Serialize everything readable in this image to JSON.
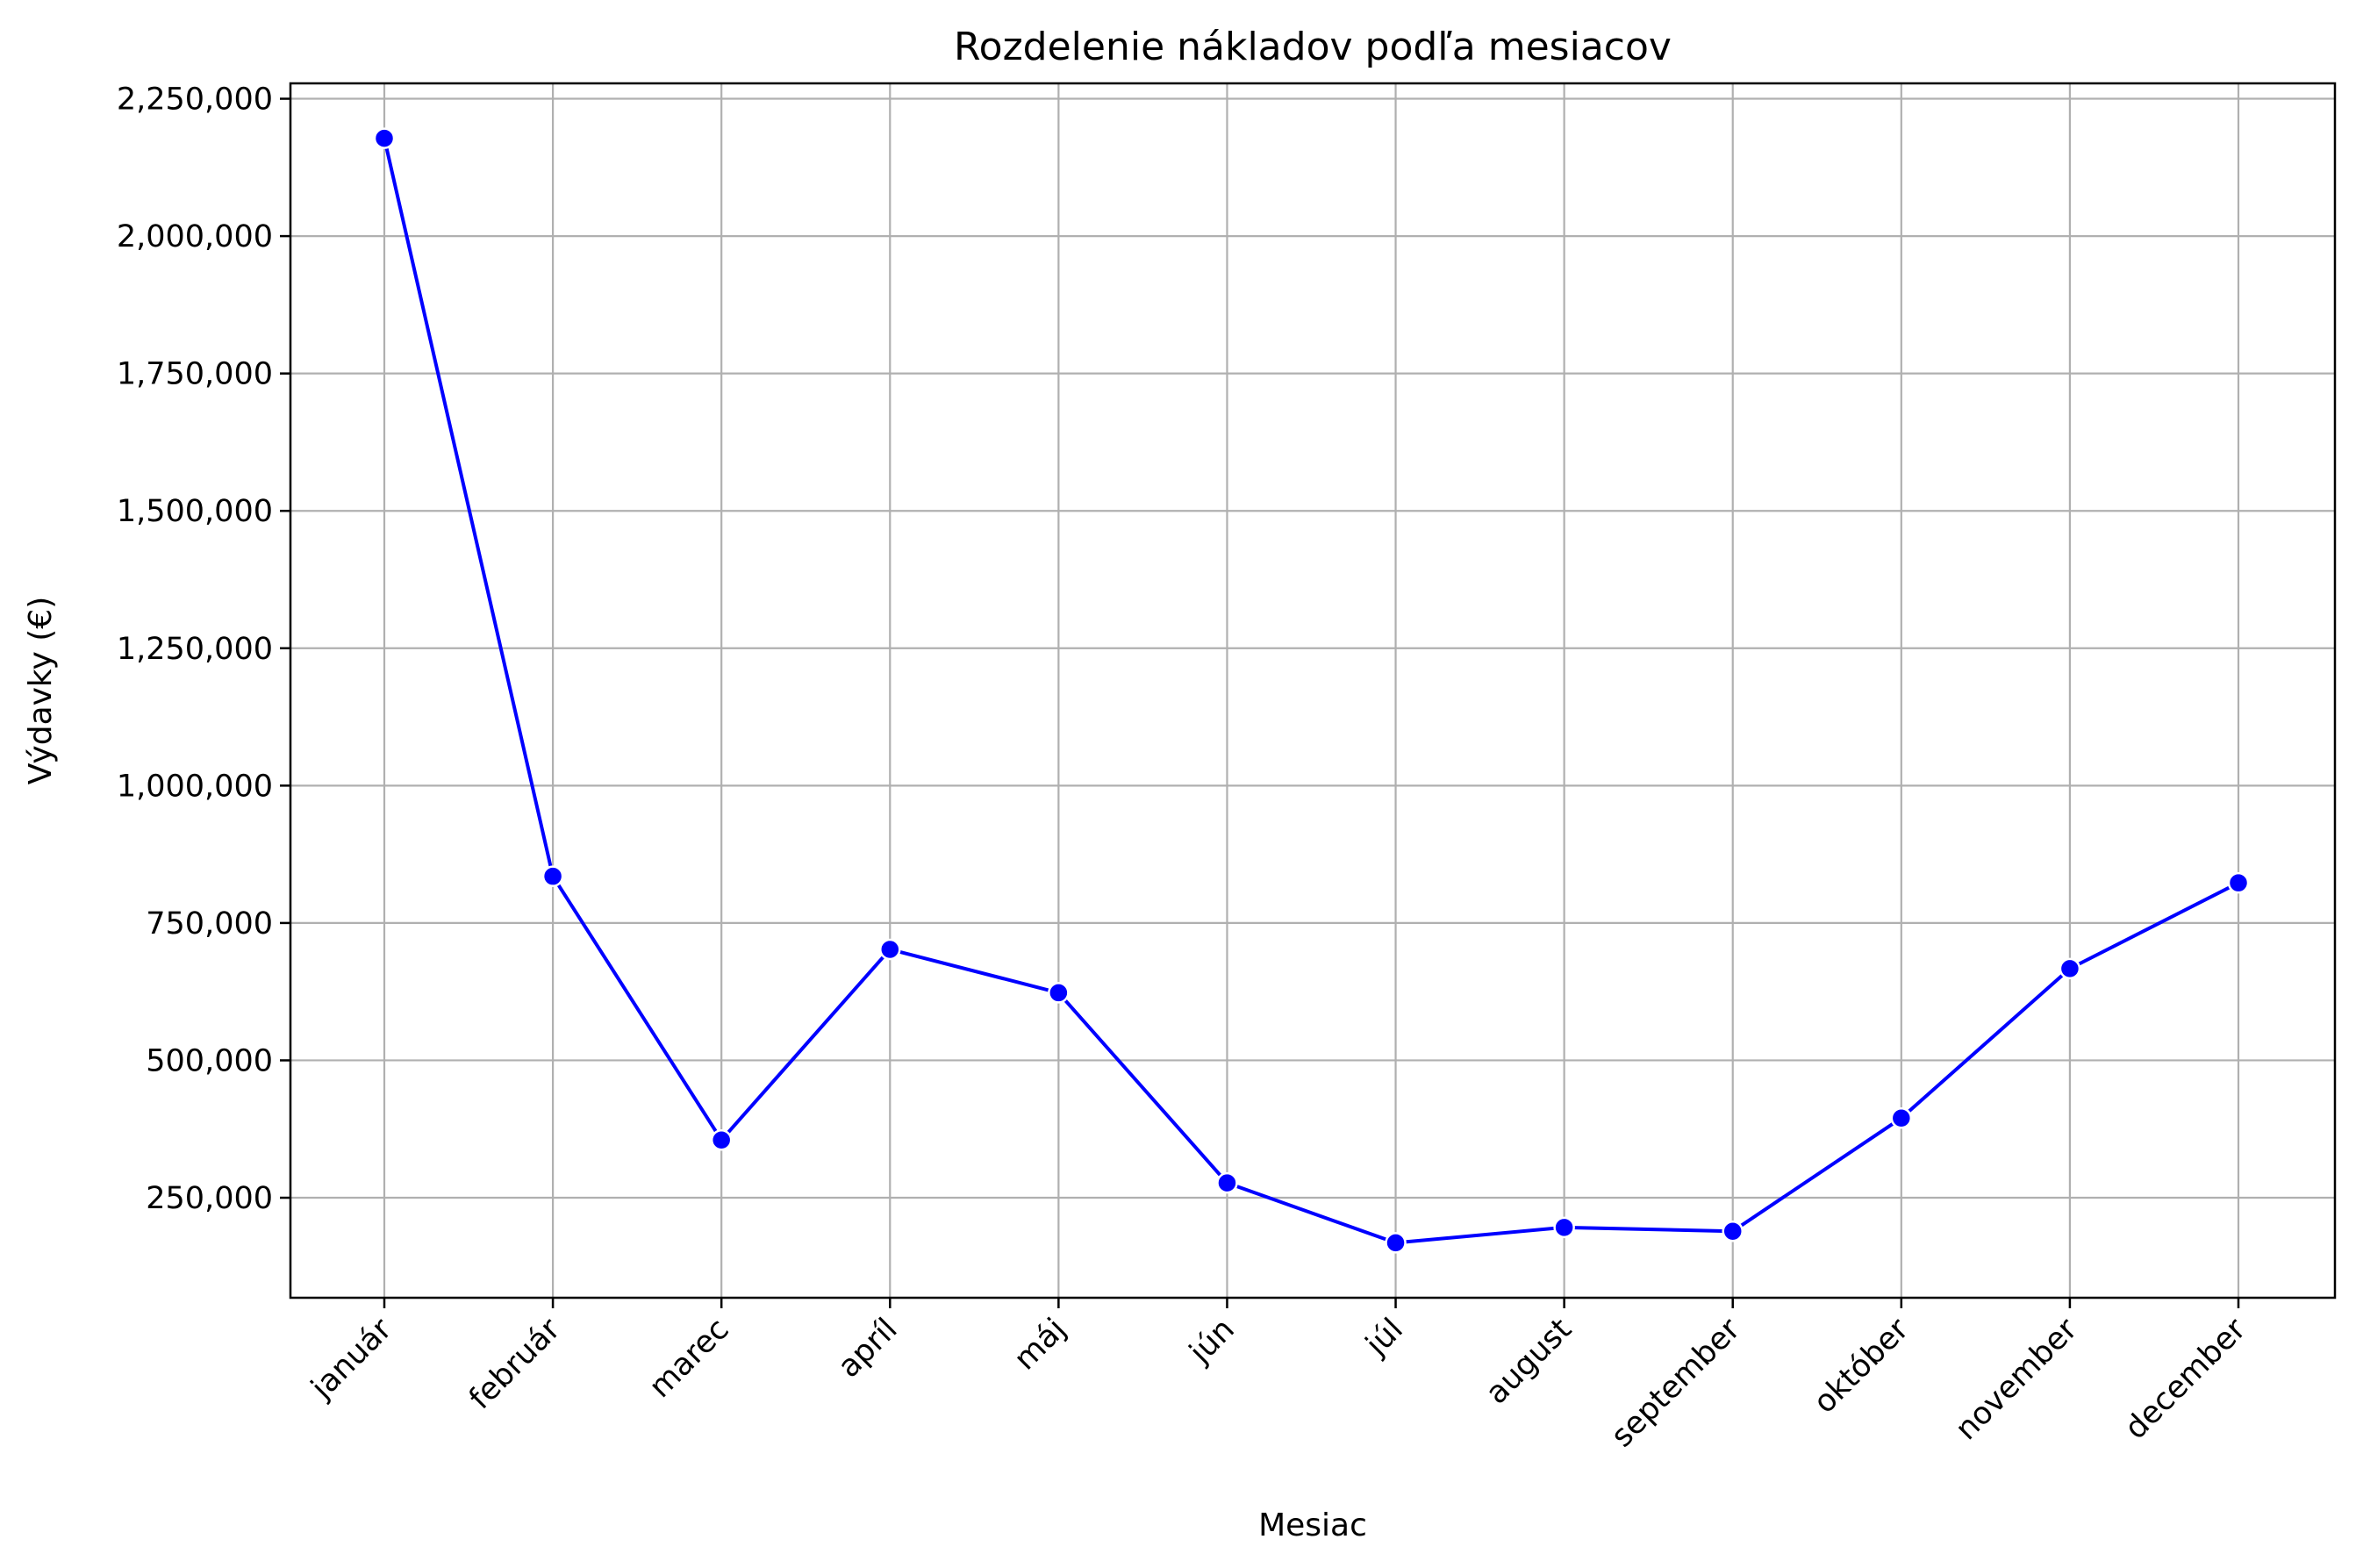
{
  "chart_data": {
    "type": "line",
    "title": "Rozdelenie nákladov podľa mesiacov",
    "xlabel": "Mesiac",
    "ylabel": "Výdavky (€)",
    "categories": [
      "január",
      "február",
      "marec",
      "apríl",
      "máj",
      "jún",
      "júl",
      "august",
      "september",
      "október",
      "november",
      "december"
    ],
    "series": [
      {
        "values": [
          2178000,
          835000,
          355000,
          702000,
          623000,
          277000,
          168000,
          196000,
          189000,
          395000,
          667000,
          823000
        ],
        "color": "#0000ff"
      }
    ],
    "yticks": [
      250000,
      500000,
      750000,
      1000000,
      1250000,
      1500000,
      1750000,
      2000000,
      2250000
    ],
    "ytick_labels": [
      "250,000",
      "500,000",
      "750,000",
      "1,000,000",
      "1,250,000",
      "1,500,000",
      "1,750,000",
      "2,000,000",
      "2,250,000"
    ],
    "ylim": [
      68000,
      2278000
    ],
    "grid": true,
    "marker": "circle"
  }
}
